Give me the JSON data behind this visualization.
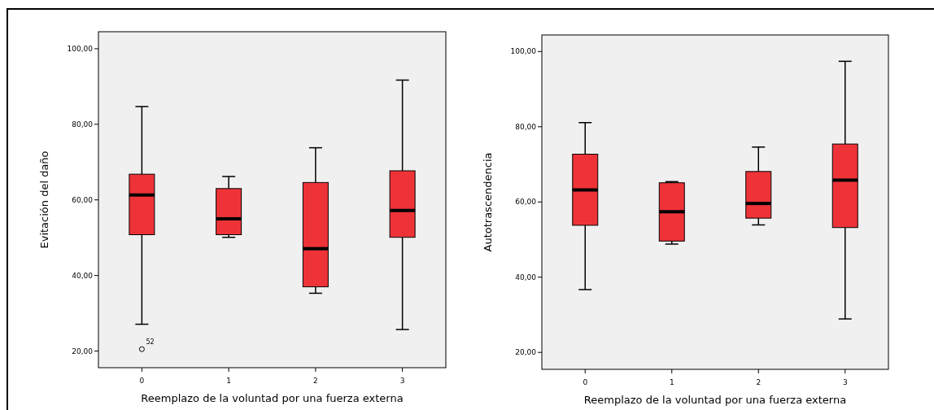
{
  "chart_data": [
    {
      "type": "box",
      "xlabel": "Reemplazo de la voluntad por una fuerza externa",
      "ylabel": "Evitación del daño",
      "categories": [
        "0",
        "1",
        "2",
        "3"
      ],
      "color": "#ee3338",
      "ylim": [
        15.6,
        104.5
      ],
      "yticks": [
        {
          "value": 20,
          "label": "20,00"
        },
        {
          "value": 40,
          "label": "40,00"
        },
        {
          "value": 60,
          "label": "60,00"
        },
        {
          "value": 80,
          "label": "80,00"
        },
        {
          "value": 100,
          "label": "100,00"
        }
      ],
      "grid": false,
      "annotations": [
        "52"
      ],
      "boxes": [
        {
          "low": 27.1,
          "q1": 50.8,
          "median": 61.3,
          "q3": 66.8,
          "high": 84.7,
          "outliers": [
            20.5
          ]
        },
        {
          "low": 50.1,
          "q1": 50.8,
          "median": 55.0,
          "q3": 63.0,
          "high": 66.2
        },
        {
          "low": 35.3,
          "q1": 37.0,
          "median": 47.1,
          "q3": 64.6,
          "high": 73.8
        },
        {
          "low": 25.7,
          "q1": 50.1,
          "median": 57.2,
          "q3": 67.7,
          "high": 91.7
        }
      ]
    },
    {
      "type": "box",
      "xlabel": "Reemplazo de la voluntad por una fuerza externa",
      "ylabel": "Autotrascendencia",
      "categories": [
        "0",
        "1",
        "2",
        "3"
      ],
      "color": "#ee3338",
      "ylim": [
        15.5,
        104.4
      ],
      "yticks": [
        {
          "value": 20,
          "label": "20,00"
        },
        {
          "value": 40,
          "label": "40,00"
        },
        {
          "value": 60,
          "label": "60,00"
        },
        {
          "value": 80,
          "label": "80,00"
        },
        {
          "value": 100,
          "label": "100,00"
        }
      ],
      "grid": false,
      "boxes": [
        {
          "low": 36.7,
          "q1": 53.8,
          "median": 63.2,
          "q3": 72.7,
          "high": 81.1
        },
        {
          "low": 48.8,
          "q1": 49.6,
          "median": 57.4,
          "q3": 65.1,
          "high": 65.4
        },
        {
          "low": 53.9,
          "q1": 55.7,
          "median": 59.6,
          "q3": 68.1,
          "high": 74.6
        },
        {
          "low": 28.9,
          "q1": 53.2,
          "median": 65.8,
          "q3": 75.4,
          "high": 97.4
        }
      ]
    }
  ]
}
